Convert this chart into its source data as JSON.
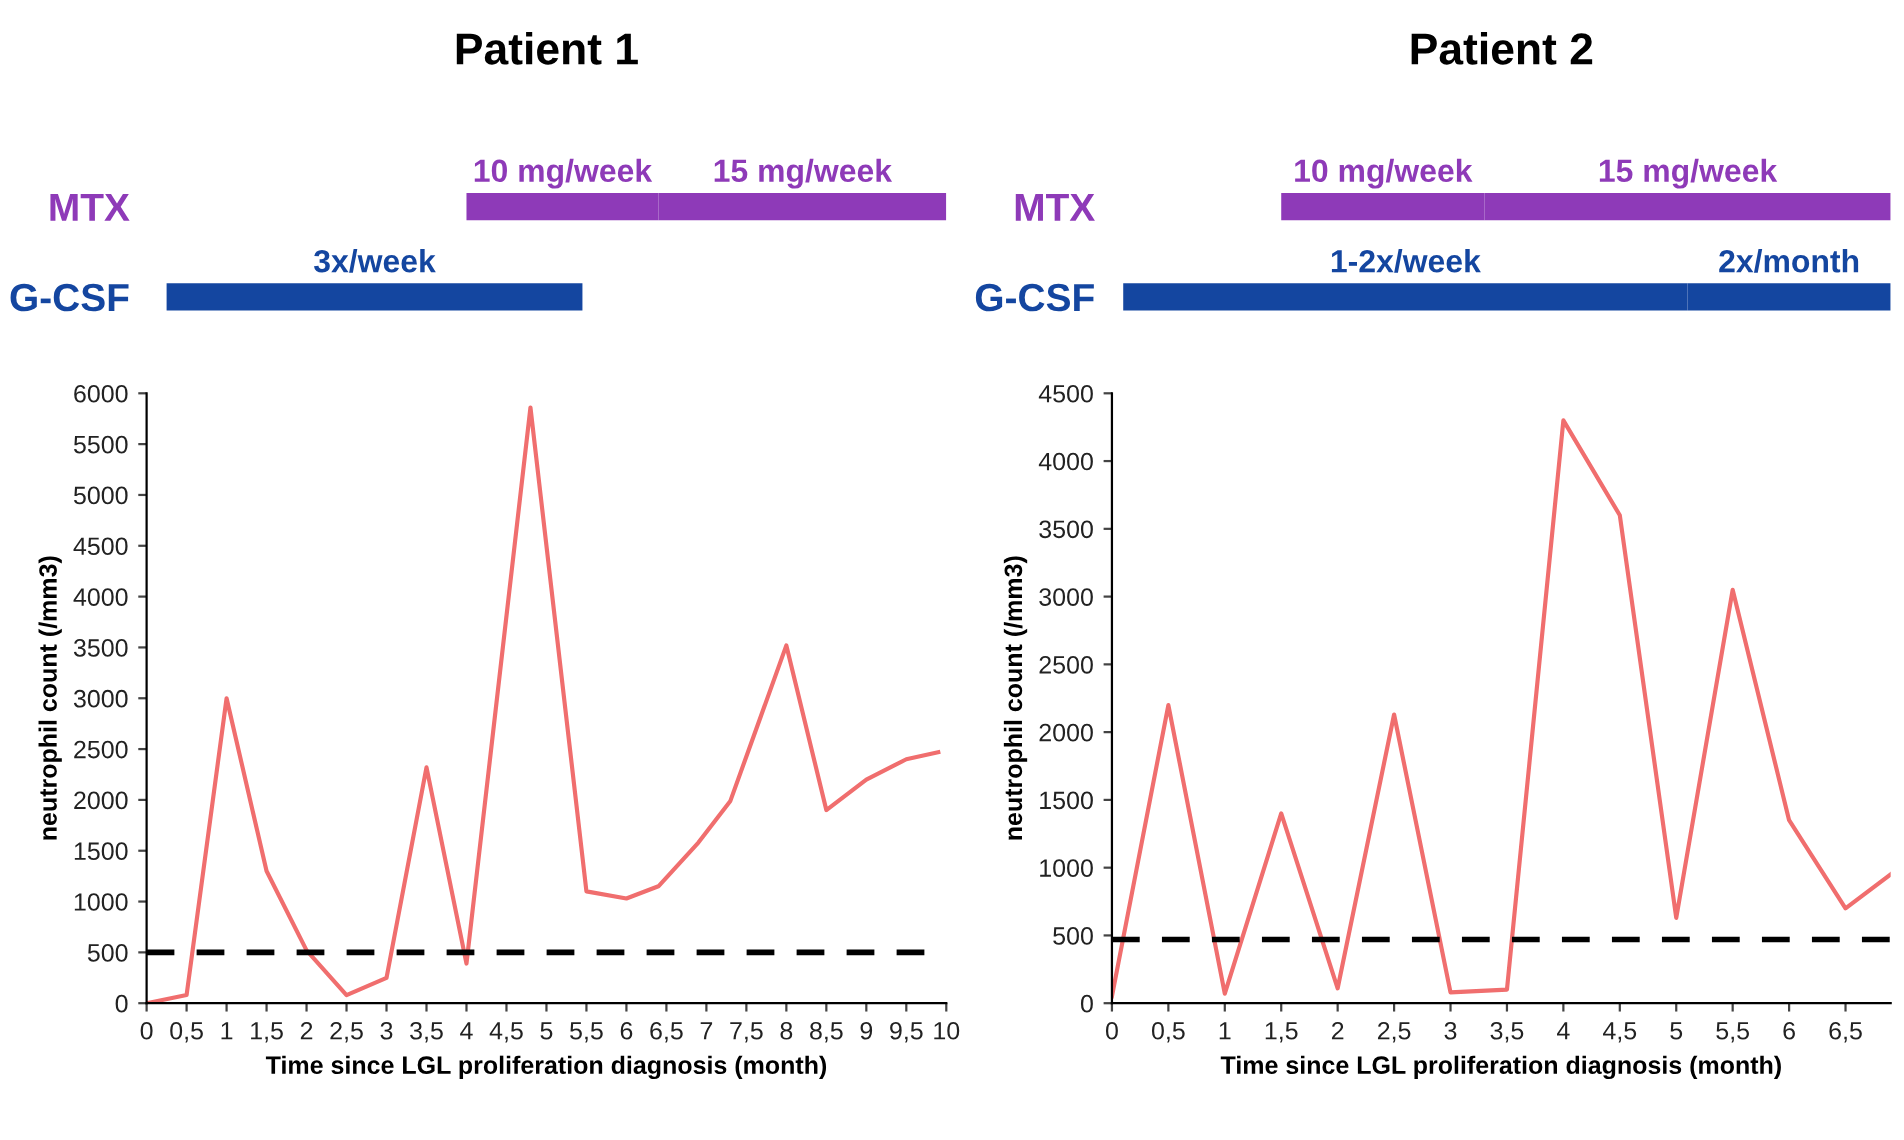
{
  "chart_data": [
    {
      "type": "bar",
      "orientation": "horizontal",
      "title": "Patient 1",
      "categories": [
        "MTX",
        "G-CSF"
      ],
      "xlim": [
        0,
        10
      ],
      "tick_labels": "y",
      "series": [
        {
          "name": "10 mg/week",
          "color": "#8e3ab8",
          "base": [
            4.0,
            null
          ],
          "values": [
            2.4,
            null
          ]
        },
        {
          "name": "15 mg/week",
          "color": "#8e3ab8",
          "base": [
            6.4,
            null
          ],
          "values": [
            3.6,
            null
          ]
        },
        {
          "name": "3x/week",
          "color": "#1446a0",
          "base": [
            null,
            0.25
          ],
          "values": [
            null,
            5.2
          ]
        }
      ]
    },
    {
      "type": "line",
      "xlabel": "Time since LGL proliferation diagnosis (month)",
      "ylabel": "neutrophil count (/mm3)",
      "xlim": [
        0,
        10
      ],
      "ylim": [
        0,
        6000
      ],
      "xticks": [
        0,
        {
          "value": 0.5,
          "label": "0,5"
        },
        1,
        {
          "value": 1.5,
          "label": "1,5"
        },
        2,
        {
          "value": 2.5,
          "label": "2,5"
        },
        3,
        {
          "value": 3.5,
          "label": "3,5"
        },
        4,
        {
          "value": 4.5,
          "label": "4,5"
        },
        5,
        {
          "value": 5.5,
          "label": "5,5"
        },
        6,
        {
          "value": 6.5,
          "label": "6,5"
        },
        7,
        {
          "value": 7.5,
          "label": "7,5"
        },
        8,
        {
          "value": 8.5,
          "label": "8,5"
        },
        9,
        {
          "value": 9.5,
          "label": "9,5"
        },
        10
      ],
      "yticks": [
        0,
        500,
        1000,
        1500,
        2000,
        2500,
        3000,
        3500,
        4000,
        4500,
        5000,
        5500,
        6000
      ],
      "marker": "none",
      "line_style": "solid",
      "ref_lines": [
        {
          "axis": "y",
          "value": 500,
          "color": "#000000",
          "line_style": "dashed"
        }
      ],
      "series": [
        {
          "color": "#f06e6e",
          "x": [
            0,
            0.5,
            1.0,
            1.5,
            2.0,
            2.5,
            3.0,
            3.5,
            4.0,
            4.8,
            5.5,
            6.0,
            6.4,
            6.9,
            7.3,
            8.0,
            8.5,
            9.0,
            9.5,
            9.9
          ],
          "values": [
            0,
            80,
            3000,
            1300,
            520,
            80,
            250,
            2320,
            390,
            5860,
            1100,
            1030,
            1150,
            1580,
            1990,
            3520,
            1900,
            2200,
            2400,
            2470
          ]
        }
      ]
    },
    {
      "type": "bar",
      "orientation": "horizontal",
      "title": "Patient 2",
      "categories": [
        "MTX",
        "G-CSF"
      ],
      "xlim": [
        0,
        6.9
      ],
      "tick_labels": "y",
      "series": [
        {
          "name": "10 mg/week",
          "color": "#8e3ab8",
          "base": [
            1.5,
            null
          ],
          "values": [
            1.8,
            null
          ]
        },
        {
          "name": "15 mg/week",
          "color": "#8e3ab8",
          "base": [
            3.3,
            null
          ],
          "values": [
            3.6,
            null
          ]
        },
        {
          "name": "1-2x/week",
          "color": "#1446a0",
          "base": [
            null,
            0.1
          ],
          "values": [
            null,
            5.0
          ]
        },
        {
          "name": "2x/month",
          "color": "#1446a0",
          "base": [
            null,
            5.1
          ],
          "values": [
            null,
            1.8
          ]
        }
      ]
    },
    {
      "type": "line",
      "xlabel": "Time since LGL proliferation diagnosis (month)",
      "ylabel": "neutrophil count (/mm3)",
      "xlim": [
        0,
        6.9
      ],
      "ylim": [
        0,
        4500
      ],
      "xticks": [
        0,
        {
          "value": 0.5,
          "label": "0,5"
        },
        1,
        {
          "value": 1.5,
          "label": "1,5"
        },
        2,
        {
          "value": 2.5,
          "label": "2,5"
        },
        3,
        {
          "value": 3.5,
          "label": "3,5"
        },
        4,
        {
          "value": 4.5,
          "label": "4,5"
        },
        5,
        {
          "value": 5.5,
          "label": "5,5"
        },
        6,
        {
          "value": 6.5,
          "label": "6,5"
        }
      ],
      "yticks": [
        0,
        500,
        1000,
        1500,
        2000,
        2500,
        3000,
        3500,
        4000,
        4500
      ],
      "marker": "none",
      "line_style": "solid",
      "ref_lines": [
        {
          "axis": "y",
          "value": 470,
          "color": "#000000",
          "line_style": "dashed"
        }
      ],
      "series": [
        {
          "color": "#f06e6e",
          "x": [
            0,
            0.5,
            1.0,
            1.5,
            2.0,
            2.5,
            3.0,
            3.5,
            4.0,
            4.5,
            5.0,
            5.5,
            6.0,
            6.5,
            6.9
          ],
          "values": [
            50,
            2200,
            70,
            1400,
            110,
            2130,
            80,
            100,
            4300,
            3600,
            630,
            3050,
            1350,
            700,
            950
          ]
        }
      ]
    }
  ]
}
